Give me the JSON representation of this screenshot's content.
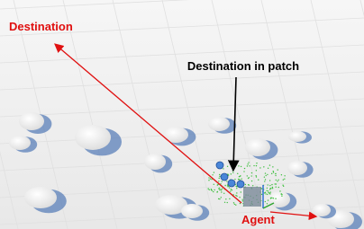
{
  "labels": {
    "destination": "Destination",
    "destination_in_patch": "Destination in patch",
    "agent": "Agent"
  }
}
